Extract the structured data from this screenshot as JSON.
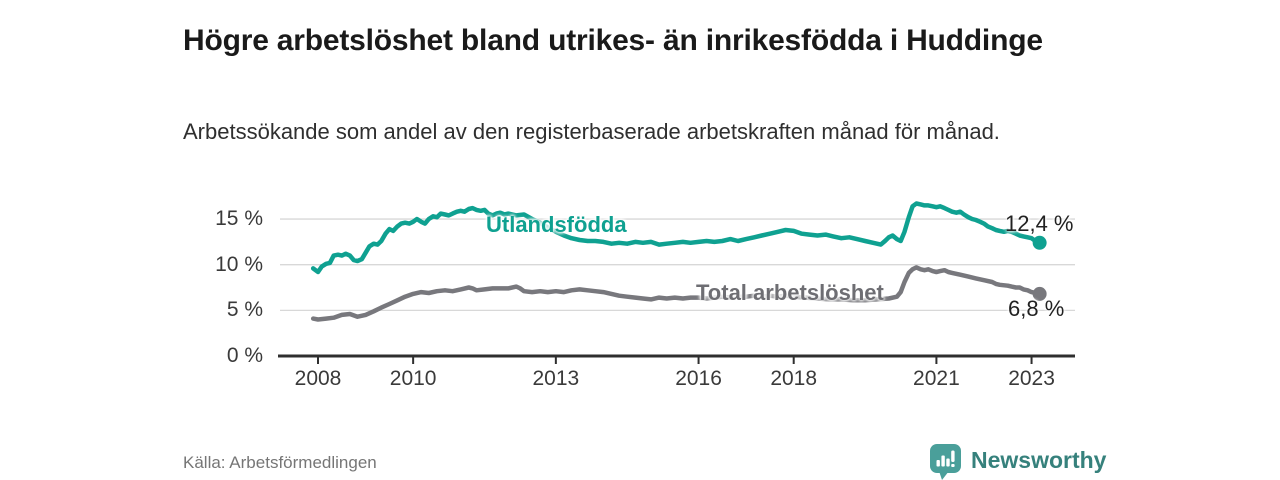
{
  "header": {
    "title": "Högre arbetslöshet bland utrikes- än inrikesfödda i Huddinge",
    "subtitle": "Arbetssökande som andel av den registerbaserade arbetskraften månad för månad."
  },
  "labels": {
    "series1": "Utlandsfödda",
    "series2": "Total arbetslöshet",
    "value1": "12,4 %",
    "value2": "6,8 %"
  },
  "footer": {
    "source": "Källa: Arbetsförmedlingen",
    "brand": "Newsworthy"
  },
  "colors": {
    "series1": "#0fa191",
    "series2": "#78787d",
    "series2_label": "#6e6e73",
    "grid": "#d8d8d8",
    "axis": "#2f2f2f",
    "logo": "#4a9f9a",
    "brand_text": "#36817c"
  },
  "chart_data": {
    "type": "line",
    "title": "Högre arbetslöshet bland utrikes- än inrikesfödda i Huddinge",
    "xlabel": "",
    "ylabel": "",
    "y_unit": "%",
    "ylim": [
      0,
      17.5
    ],
    "xlim": [
      2007.8,
      2023.9
    ],
    "grid": "horizontal",
    "x_ticks": [
      {
        "value": 2008,
        "label": "2008"
      },
      {
        "value": 2010,
        "label": "2010"
      },
      {
        "value": 2013,
        "label": "2013"
      },
      {
        "value": 2016,
        "label": "2016"
      },
      {
        "value": 2018,
        "label": "2018"
      },
      {
        "value": 2021,
        "label": "2021"
      },
      {
        "value": 2023,
        "label": "2023"
      }
    ],
    "y_ticks": [
      {
        "value": 0,
        "label": "0 %"
      },
      {
        "value": 5,
        "label": "5 %"
      },
      {
        "value": 10,
        "label": "10 %"
      },
      {
        "value": 15,
        "label": "15 %"
      }
    ],
    "series": [
      {
        "name": "Utlandsfödda",
        "color": "#0fa191",
        "end_value_label": "12,4 %",
        "end_value": 12.4,
        "points": [
          [
            2007.9,
            9.6
          ],
          [
            2008.0,
            9.2
          ],
          [
            2008.08,
            9.8
          ],
          [
            2008.17,
            10.1
          ],
          [
            2008.25,
            10.2
          ],
          [
            2008.33,
            11.0
          ],
          [
            2008.42,
            11.1
          ],
          [
            2008.5,
            11.0
          ],
          [
            2008.58,
            11.2
          ],
          [
            2008.67,
            11.0
          ],
          [
            2008.75,
            10.5
          ],
          [
            2008.83,
            10.4
          ],
          [
            2008.92,
            10.6
          ],
          [
            2009.0,
            11.3
          ],
          [
            2009.08,
            12.0
          ],
          [
            2009.17,
            12.3
          ],
          [
            2009.25,
            12.2
          ],
          [
            2009.33,
            12.6
          ],
          [
            2009.42,
            13.4
          ],
          [
            2009.5,
            13.9
          ],
          [
            2009.58,
            13.7
          ],
          [
            2009.67,
            14.2
          ],
          [
            2009.75,
            14.5
          ],
          [
            2009.83,
            14.6
          ],
          [
            2009.92,
            14.5
          ],
          [
            2010.0,
            14.7
          ],
          [
            2010.08,
            15.0
          ],
          [
            2010.17,
            14.7
          ],
          [
            2010.25,
            14.5
          ],
          [
            2010.33,
            15.0
          ],
          [
            2010.42,
            15.3
          ],
          [
            2010.5,
            15.2
          ],
          [
            2010.58,
            15.6
          ],
          [
            2010.67,
            15.5
          ],
          [
            2010.75,
            15.4
          ],
          [
            2010.83,
            15.6
          ],
          [
            2010.92,
            15.8
          ],
          [
            2011.0,
            15.9
          ],
          [
            2011.08,
            15.8
          ],
          [
            2011.17,
            16.1
          ],
          [
            2011.25,
            16.2
          ],
          [
            2011.33,
            16.0
          ],
          [
            2011.42,
            15.9
          ],
          [
            2011.5,
            16.0
          ],
          [
            2011.58,
            15.6
          ],
          [
            2011.67,
            15.4
          ],
          [
            2011.75,
            15.6
          ],
          [
            2011.83,
            15.7
          ],
          [
            2011.92,
            15.5
          ],
          [
            2012.0,
            15.6
          ],
          [
            2012.17,
            15.4
          ],
          [
            2012.33,
            15.5
          ],
          [
            2012.5,
            15.0
          ],
          [
            2012.67,
            14.6
          ],
          [
            2012.83,
            14.1
          ],
          [
            2013.0,
            13.6
          ],
          [
            2013.17,
            13.2
          ],
          [
            2013.33,
            12.9
          ],
          [
            2013.5,
            12.7
          ],
          [
            2013.67,
            12.6
          ],
          [
            2013.83,
            12.6
          ],
          [
            2014.0,
            12.5
          ],
          [
            2014.17,
            12.3
          ],
          [
            2014.33,
            12.4
          ],
          [
            2014.5,
            12.3
          ],
          [
            2014.67,
            12.5
          ],
          [
            2014.83,
            12.4
          ],
          [
            2015.0,
            12.5
          ],
          [
            2015.17,
            12.2
          ],
          [
            2015.33,
            12.3
          ],
          [
            2015.5,
            12.4
          ],
          [
            2015.67,
            12.5
          ],
          [
            2015.83,
            12.4
          ],
          [
            2016.0,
            12.5
          ],
          [
            2016.17,
            12.6
          ],
          [
            2016.33,
            12.5
          ],
          [
            2016.5,
            12.6
          ],
          [
            2016.67,
            12.8
          ],
          [
            2016.83,
            12.6
          ],
          [
            2017.0,
            12.8
          ],
          [
            2017.17,
            13.0
          ],
          [
            2017.33,
            13.2
          ],
          [
            2017.5,
            13.4
          ],
          [
            2017.67,
            13.6
          ],
          [
            2017.83,
            13.8
          ],
          [
            2018.0,
            13.7
          ],
          [
            2018.17,
            13.4
          ],
          [
            2018.33,
            13.3
          ],
          [
            2018.5,
            13.2
          ],
          [
            2018.67,
            13.3
          ],
          [
            2018.83,
            13.1
          ],
          [
            2019.0,
            12.9
          ],
          [
            2019.17,
            13.0
          ],
          [
            2019.33,
            12.8
          ],
          [
            2019.5,
            12.6
          ],
          [
            2019.67,
            12.4
          ],
          [
            2019.83,
            12.2
          ],
          [
            2019.92,
            12.6
          ],
          [
            2020.0,
            13.0
          ],
          [
            2020.08,
            13.2
          ],
          [
            2020.17,
            12.8
          ],
          [
            2020.25,
            12.6
          ],
          [
            2020.33,
            13.6
          ],
          [
            2020.42,
            15.2
          ],
          [
            2020.5,
            16.4
          ],
          [
            2020.58,
            16.7
          ],
          [
            2020.67,
            16.6
          ],
          [
            2020.75,
            16.5
          ],
          [
            2020.83,
            16.5
          ],
          [
            2020.92,
            16.4
          ],
          [
            2021.0,
            16.3
          ],
          [
            2021.08,
            16.4
          ],
          [
            2021.17,
            16.2
          ],
          [
            2021.25,
            16.0
          ],
          [
            2021.33,
            15.8
          ],
          [
            2021.42,
            15.7
          ],
          [
            2021.5,
            15.8
          ],
          [
            2021.58,
            15.5
          ],
          [
            2021.67,
            15.2
          ],
          [
            2021.75,
            15.0
          ],
          [
            2021.83,
            14.9
          ],
          [
            2021.92,
            14.7
          ],
          [
            2022.0,
            14.5
          ],
          [
            2022.08,
            14.2
          ],
          [
            2022.17,
            14.0
          ],
          [
            2022.25,
            13.8
          ],
          [
            2022.33,
            13.7
          ],
          [
            2022.42,
            13.6
          ],
          [
            2022.5,
            13.7
          ],
          [
            2022.58,
            13.6
          ],
          [
            2022.67,
            13.4
          ],
          [
            2022.75,
            13.2
          ],
          [
            2022.83,
            13.1
          ],
          [
            2022.92,
            13.0
          ],
          [
            2023.0,
            12.9
          ],
          [
            2023.08,
            12.6
          ],
          [
            2023.17,
            12.4
          ]
        ]
      },
      {
        "name": "Total arbetslöshet",
        "color": "#78787d",
        "end_value_label": "6,8 %",
        "end_value": 6.8,
        "points": [
          [
            2007.9,
            4.1
          ],
          [
            2008.0,
            4.0
          ],
          [
            2008.17,
            4.1
          ],
          [
            2008.33,
            4.2
          ],
          [
            2008.5,
            4.5
          ],
          [
            2008.67,
            4.6
          ],
          [
            2008.83,
            4.3
          ],
          [
            2009.0,
            4.5
          ],
          [
            2009.17,
            4.9
          ],
          [
            2009.33,
            5.3
          ],
          [
            2009.5,
            5.7
          ],
          [
            2009.67,
            6.1
          ],
          [
            2009.83,
            6.5
          ],
          [
            2010.0,
            6.8
          ],
          [
            2010.17,
            7.0
          ],
          [
            2010.33,
            6.9
          ],
          [
            2010.5,
            7.1
          ],
          [
            2010.67,
            7.2
          ],
          [
            2010.83,
            7.1
          ],
          [
            2011.0,
            7.3
          ],
          [
            2011.17,
            7.5
          ],
          [
            2011.25,
            7.4
          ],
          [
            2011.33,
            7.2
          ],
          [
            2011.5,
            7.3
          ],
          [
            2011.67,
            7.4
          ],
          [
            2011.83,
            7.4
          ],
          [
            2012.0,
            7.4
          ],
          [
            2012.17,
            7.6
          ],
          [
            2012.25,
            7.4
          ],
          [
            2012.33,
            7.1
          ],
          [
            2012.5,
            7.0
          ],
          [
            2012.67,
            7.1
          ],
          [
            2012.83,
            7.0
          ],
          [
            2013.0,
            7.1
          ],
          [
            2013.17,
            7.0
          ],
          [
            2013.33,
            7.2
          ],
          [
            2013.5,
            7.3
          ],
          [
            2013.67,
            7.2
          ],
          [
            2013.83,
            7.1
          ],
          [
            2014.0,
            7.0
          ],
          [
            2014.17,
            6.8
          ],
          [
            2014.33,
            6.6
          ],
          [
            2014.5,
            6.5
          ],
          [
            2014.67,
            6.4
          ],
          [
            2014.83,
            6.3
          ],
          [
            2015.0,
            6.2
          ],
          [
            2015.17,
            6.4
          ],
          [
            2015.33,
            6.3
          ],
          [
            2015.5,
            6.4
          ],
          [
            2015.67,
            6.3
          ],
          [
            2015.83,
            6.4
          ],
          [
            2016.0,
            6.4
          ],
          [
            2016.17,
            6.3
          ],
          [
            2016.33,
            6.4
          ],
          [
            2016.5,
            6.5
          ],
          [
            2016.67,
            6.4
          ],
          [
            2016.83,
            6.5
          ],
          [
            2017.0,
            6.5
          ],
          [
            2017.17,
            6.6
          ],
          [
            2017.33,
            6.5
          ],
          [
            2017.5,
            6.6
          ],
          [
            2017.67,
            6.5
          ],
          [
            2017.83,
            6.6
          ],
          [
            2018.0,
            6.5
          ],
          [
            2018.25,
            6.4
          ],
          [
            2018.5,
            6.3
          ],
          [
            2018.75,
            6.2
          ],
          [
            2019.0,
            6.2
          ],
          [
            2019.25,
            6.1
          ],
          [
            2019.5,
            6.1
          ],
          [
            2019.75,
            6.2
          ],
          [
            2020.0,
            6.3
          ],
          [
            2020.17,
            6.5
          ],
          [
            2020.25,
            7.0
          ],
          [
            2020.33,
            8.1
          ],
          [
            2020.42,
            9.1
          ],
          [
            2020.5,
            9.5
          ],
          [
            2020.58,
            9.7
          ],
          [
            2020.67,
            9.5
          ],
          [
            2020.75,
            9.4
          ],
          [
            2020.83,
            9.5
          ],
          [
            2020.92,
            9.3
          ],
          [
            2021.0,
            9.2
          ],
          [
            2021.08,
            9.3
          ],
          [
            2021.17,
            9.4
          ],
          [
            2021.25,
            9.2
          ],
          [
            2021.33,
            9.1
          ],
          [
            2021.5,
            8.9
          ],
          [
            2021.67,
            8.7
          ],
          [
            2021.83,
            8.5
          ],
          [
            2022.0,
            8.3
          ],
          [
            2022.17,
            8.1
          ],
          [
            2022.25,
            7.9
          ],
          [
            2022.33,
            7.8
          ],
          [
            2022.5,
            7.7
          ],
          [
            2022.58,
            7.6
          ],
          [
            2022.67,
            7.5
          ],
          [
            2022.75,
            7.5
          ],
          [
            2022.83,
            7.3
          ],
          [
            2022.92,
            7.2
          ],
          [
            2023.0,
            7.0
          ],
          [
            2023.08,
            6.9
          ],
          [
            2023.17,
            6.8
          ]
        ]
      }
    ]
  }
}
